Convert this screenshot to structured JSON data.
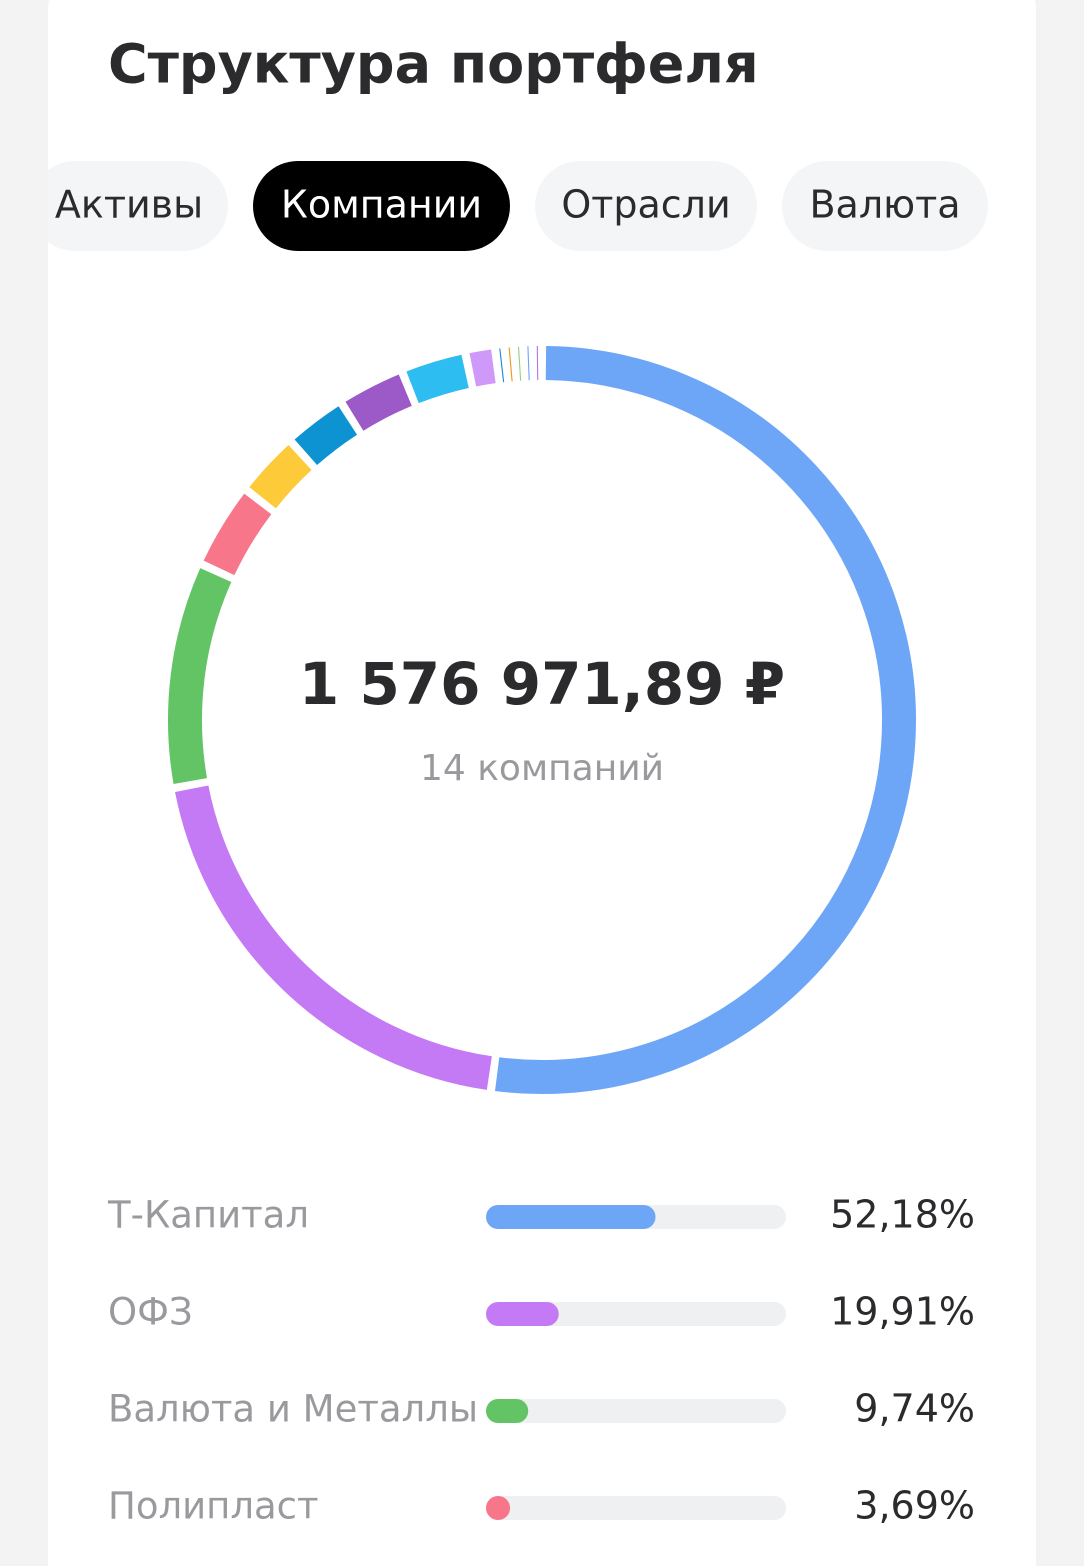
{
  "header": {
    "title": "Структура портфеля"
  },
  "tabs": [
    "Активы",
    "Компании",
    "Отрасли",
    "Валюта"
  ],
  "chart_data": {
    "type": "donut",
    "center_title": "1 576 971,89 ₽",
    "center_subtitle": "14 компаний",
    "categories": [
      "Т-Капитал",
      "ОФЗ",
      "Валюта и Металлы",
      "Полипласт",
      null,
      null,
      null,
      null,
      null,
      null,
      null,
      null,
      null,
      null
    ],
    "values": [
      52.18,
      19.91,
      9.74,
      3.69,
      2.8,
      2.7,
      2.9,
      2.8,
      1.28,
      0.4,
      0.4,
      0.4,
      0.4,
      0.4
    ],
    "value_labels": [
      "52,18%",
      "19,91%",
      "9,74%",
      "3,69%",
      null,
      null,
      null,
      null,
      null,
      null,
      null,
      null,
      null,
      null
    ],
    "colors": [
      "#6ea6f7",
      "#c57af5",
      "#63c466",
      "#f7768a",
      "#fdcb3a",
      "#0d93d2",
      "#9c59c8",
      "#2ebdf0",
      "#cf99f9",
      "#1a8ad6",
      "#f0961a",
      "#8fd47c",
      "#6ea6f7",
      "#b377ee"
    ]
  }
}
